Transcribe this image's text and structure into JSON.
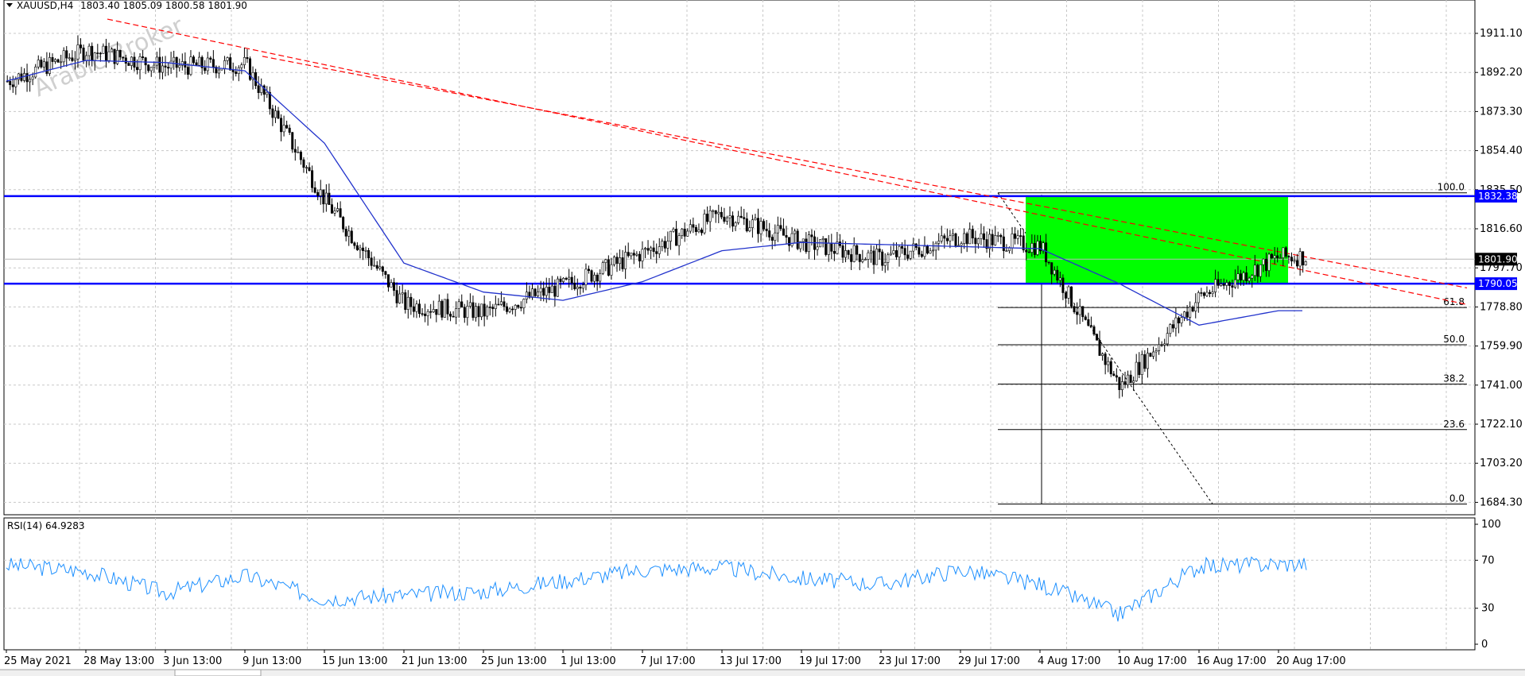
{
  "header": {
    "symbol": "XAUUSD,H4",
    "ohlc": "1803.40 1805.09 1800.58 1801.90"
  },
  "watermark": "Arabic Broker",
  "price_panel": {
    "tick_labels": [
      "1911.10",
      "1892.20",
      "1873.30",
      "1854.40",
      "1835.50",
      "1816.60",
      "1797.70",
      "1778.80",
      "1759.90",
      "1741.00",
      "1722.10",
      "1703.20",
      "1684.30"
    ],
    "resistance": {
      "label": "1832.38",
      "value": 1832.38,
      "color": "#0000ff"
    },
    "support": {
      "label": "1790.05",
      "value": 1790.05,
      "color": "#0000ff"
    },
    "current_price": {
      "label": "1801.90",
      "value": 1801.9
    },
    "fibonacci": [
      {
        "level": "100.0",
        "value": 1834.0
      },
      {
        "level": "61.8",
        "value": 1778.5
      },
      {
        "level": "50.0",
        "value": 1760.5
      },
      {
        "level": "38.2",
        "value": 1741.5
      },
      {
        "level": "23.6",
        "value": 1719.5
      },
      {
        "level": "0.0",
        "value": 1683.5
      }
    ],
    "zone_color": "#00ff00",
    "trend_color": "#ff0000",
    "ma_color": "#2233cc"
  },
  "rsi_panel": {
    "label": "RSI(14) 64.9283",
    "tick_labels": [
      "100",
      "70",
      "30",
      "0"
    ],
    "line_color": "#1e90ff"
  },
  "x_axis": {
    "labels": [
      "25 May 2021",
      "28 May 13:00",
      "3 Jun 13:00",
      "9 Jun 13:00",
      "15 Jun 13:00",
      "21 Jun 13:00",
      "25 Jun 13:00",
      "1 Jul 13:00",
      "7 Jul 17:00",
      "13 Jul 17:00",
      "19 Jul 17:00",
      "23 Jul 17:00",
      "29 Jul 17:00",
      "4 Aug 17:00",
      "10 Aug 17:00",
      "16 Aug 17:00",
      "20 Aug 17:00"
    ]
  },
  "chart_data": {
    "type": "line",
    "title": "XAUUSD,H4",
    "x": [
      "25 May 2021",
      "28 May 13:00",
      "3 Jun 13:00",
      "9 Jun 13:00",
      "15 Jun 13:00",
      "21 Jun 13:00",
      "25 Jun 13:00",
      "1 Jul 13:00",
      "7 Jul 17:00",
      "13 Jul 17:00",
      "19 Jul 17:00",
      "23 Jul 17:00",
      "29 Jul 17:00",
      "4 Aug 17:00",
      "10 Aug 17:00",
      "16 Aug 17:00",
      "20 Aug 17:00"
    ],
    "series": [
      {
        "values": [
          1888,
          1903,
          1895,
          1896,
          1830,
          1780,
          1776,
          1789,
          1805,
          1824,
          1810,
          1802,
          1813,
          1808,
          1740,
          1784,
          1803
        ]
      },
      {
        "values": [
          1888,
          1898,
          1897,
          1893,
          1858,
          1800,
          1786,
          1782,
          1791,
          1806,
          1810,
          1809,
          1808,
          1807,
          1790,
          1770,
          1777
        ]
      }
    ],
    "ylim": [
      1684.3,
      1920
    ],
    "rsi": {
      "values": [
        66,
        61,
        43,
        57,
        38,
        41,
        44,
        53,
        62,
        64,
        55,
        50,
        62,
        50,
        25,
        65,
        67
      ],
      "ylim": [
        0,
        100
      ]
    }
  }
}
